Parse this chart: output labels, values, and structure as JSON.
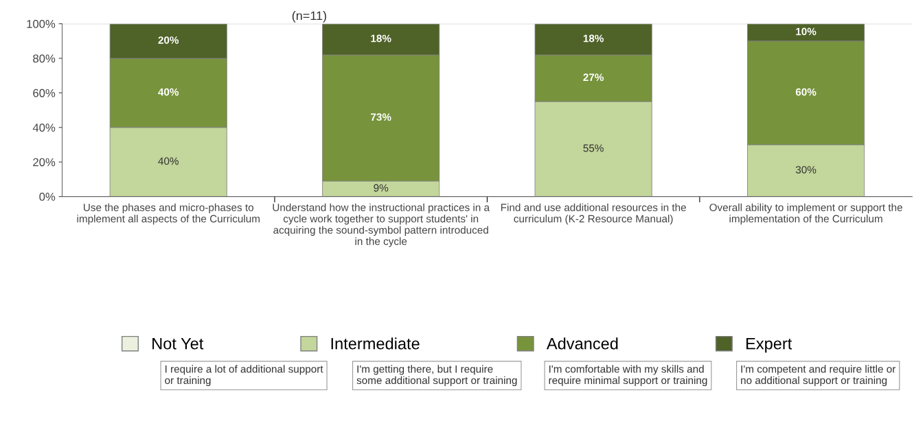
{
  "chart_data": {
    "type": "bar",
    "title": "(n=11)",
    "stacked": true,
    "categories": [
      "Use the phases and micro-phases to implement all aspects of the Curriculum",
      "Understand how the instructional practices in a cycle work together to support students' in acquiring the sound-symbol pattern introduced in the cycle",
      "Find and use additional resources in the curriculum (K-2 Resource Manual)",
      "Overall ability to implement or support the implementation of the Curriculum"
    ],
    "series": [
      {
        "name": "Not Yet",
        "color": "#ebf1de",
        "values": [
          0,
          0,
          0,
          0
        ],
        "value_labels": [
          null,
          null,
          null,
          null
        ]
      },
      {
        "name": "Intermediate",
        "color": "#c3d69b",
        "values": [
          40,
          9,
          55,
          30
        ],
        "value_labels": [
          "40%",
          "9%",
          "55%",
          "30%"
        ]
      },
      {
        "name": "Advanced",
        "color": "#77933c",
        "values": [
          40,
          73,
          27,
          60
        ],
        "value_labels": [
          "40%",
          "73%",
          "27%",
          "60%"
        ]
      },
      {
        "name": "Expert",
        "color": "#4f6228",
        "values": [
          20,
          18,
          18,
          10
        ],
        "value_labels": [
          "20%",
          "18%",
          "18%",
          "10%"
        ]
      }
    ],
    "ylim": [
      0,
      100
    ],
    "yticks": [
      {
        "value": 0,
        "label": "0%"
      },
      {
        "value": 20,
        "label": "20%"
      },
      {
        "value": 40,
        "label": "40%"
      },
      {
        "value": 60,
        "label": "60%"
      },
      {
        "value": 80,
        "label": "80%"
      },
      {
        "value": 100,
        "label": "100%"
      }
    ],
    "grid": false,
    "legend": "bottom",
    "annotations": [
      "I require a lot of additional support or training",
      "I'm getting there, but I require some additional support or training",
      "I'm comfortable with my skills and require minimal support or training",
      "I'm competent and require little or no additional support or training"
    ]
  }
}
